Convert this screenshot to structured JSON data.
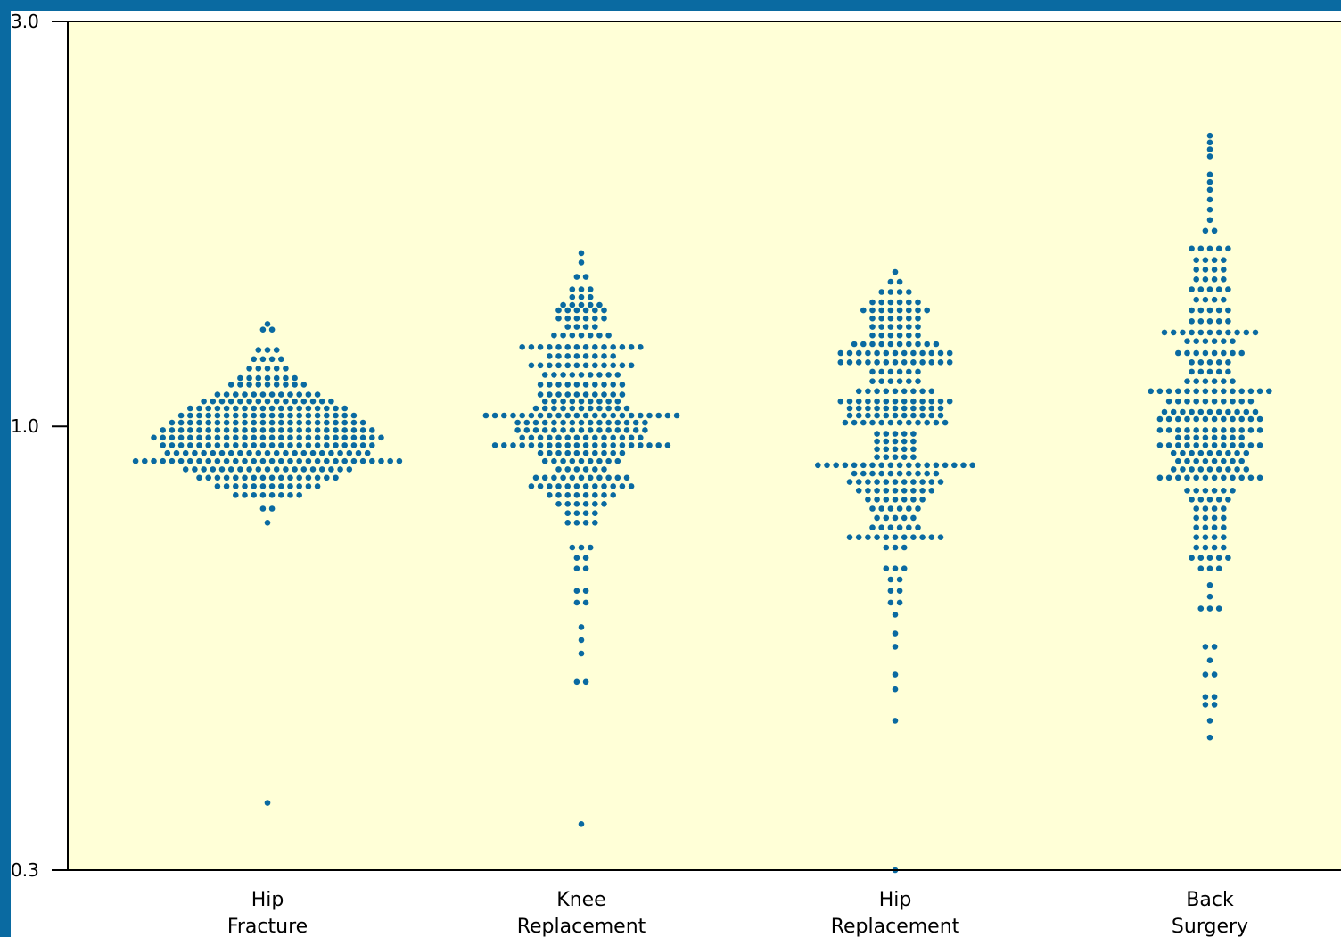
{
  "chart_data": {
    "type": "scatter",
    "style": "beeswarm",
    "y_scale": "log",
    "ylim": [
      0.3,
      3.0
    ],
    "y_ticks": [
      "0.3",
      "1.0",
      "3.0"
    ],
    "colors": {
      "plot_bg": "#ffffd7",
      "point": "#0a6aa1",
      "frame": "#0a6aa1"
    },
    "categories": [
      {
        "line1": "Hip",
        "line2": "Fracture"
      },
      {
        "line1": "Knee",
        "line2": "Replacement"
      },
      {
        "line1": "Hip",
        "line2": "Replacement"
      },
      {
        "line1": "Back",
        "line2": "Surgery"
      }
    ],
    "series": [
      {
        "rows": [
          [
            1.32,
            1
          ],
          [
            1.3,
            2
          ],
          [
            1.23,
            3
          ],
          [
            1.2,
            4
          ],
          [
            1.17,
            5
          ],
          [
            1.14,
            7
          ],
          [
            1.12,
            9
          ],
          [
            1.09,
            12
          ],
          [
            1.07,
            15
          ],
          [
            1.05,
            18
          ],
          [
            1.03,
            20
          ],
          [
            1.01,
            22
          ],
          [
            0.99,
            24
          ],
          [
            0.97,
            26
          ],
          [
            0.95,
            24
          ],
          [
            0.93,
            23
          ],
          [
            0.91,
            30
          ],
          [
            0.89,
            19
          ],
          [
            0.87,
            16
          ],
          [
            0.85,
            12
          ],
          [
            0.83,
            8
          ],
          [
            0.8,
            2
          ],
          [
            0.77,
            1
          ],
          [
            0.36,
            1
          ]
        ]
      },
      {
        "rows": [
          [
            1.6,
            1
          ],
          [
            1.56,
            1
          ],
          [
            1.5,
            2
          ],
          [
            1.45,
            3
          ],
          [
            1.42,
            3
          ],
          [
            1.39,
            5
          ],
          [
            1.37,
            6
          ],
          [
            1.34,
            6
          ],
          [
            1.31,
            4
          ],
          [
            1.28,
            7
          ],
          [
            1.24,
            14
          ],
          [
            1.21,
            8
          ],
          [
            1.18,
            12
          ],
          [
            1.15,
            9
          ],
          [
            1.12,
            10
          ],
          [
            1.09,
            10
          ],
          [
            1.07,
            9
          ],
          [
            1.05,
            11
          ],
          [
            1.03,
            22
          ],
          [
            1.01,
            15
          ],
          [
            0.99,
            15
          ],
          [
            0.97,
            14
          ],
          [
            0.95,
            20
          ],
          [
            0.93,
            10
          ],
          [
            0.91,
            9
          ],
          [
            0.89,
            6
          ],
          [
            0.87,
            11
          ],
          [
            0.85,
            12
          ],
          [
            0.83,
            8
          ],
          [
            0.81,
            6
          ],
          [
            0.79,
            4
          ],
          [
            0.77,
            4
          ],
          [
            0.72,
            3
          ],
          [
            0.7,
            2
          ],
          [
            0.68,
            2
          ],
          [
            0.64,
            2
          ],
          [
            0.62,
            2
          ],
          [
            0.58,
            1
          ],
          [
            0.56,
            1
          ],
          [
            0.54,
            1
          ],
          [
            0.5,
            2
          ],
          [
            0.34,
            1
          ]
        ]
      },
      {
        "rows": [
          [
            1.52,
            1
          ],
          [
            1.48,
            2
          ],
          [
            1.44,
            4
          ],
          [
            1.4,
            6
          ],
          [
            1.37,
            8
          ],
          [
            1.34,
            6
          ],
          [
            1.31,
            6
          ],
          [
            1.28,
            6
          ],
          [
            1.25,
            10
          ],
          [
            1.22,
            13
          ],
          [
            1.19,
            13
          ],
          [
            1.16,
            6
          ],
          [
            1.13,
            6
          ],
          [
            1.1,
            9
          ],
          [
            1.07,
            13
          ],
          [
            1.05,
            11
          ],
          [
            1.03,
            11
          ],
          [
            1.01,
            12
          ],
          [
            0.98,
            5
          ],
          [
            0.96,
            5
          ],
          [
            0.94,
            5
          ],
          [
            0.92,
            5
          ],
          [
            0.9,
            18
          ],
          [
            0.88,
            10
          ],
          [
            0.86,
            11
          ],
          [
            0.84,
            9
          ],
          [
            0.82,
            7
          ],
          [
            0.8,
            6
          ],
          [
            0.78,
            5
          ],
          [
            0.76,
            6
          ],
          [
            0.74,
            11
          ],
          [
            0.72,
            3
          ],
          [
            0.68,
            3
          ],
          [
            0.66,
            2
          ],
          [
            0.64,
            2
          ],
          [
            0.62,
            2
          ],
          [
            0.6,
            1
          ],
          [
            0.57,
            1
          ],
          [
            0.55,
            1
          ],
          [
            0.51,
            1
          ],
          [
            0.49,
            1
          ],
          [
            0.45,
            1
          ],
          [
            0.3,
            1
          ]
        ]
      },
      {
        "rows": [
          [
            2.2,
            1
          ],
          [
            2.16,
            1
          ],
          [
            2.12,
            1
          ],
          [
            2.08,
            1
          ],
          [
            1.98,
            1
          ],
          [
            1.94,
            1
          ],
          [
            1.9,
            1
          ],
          [
            1.85,
            1
          ],
          [
            1.8,
            1
          ],
          [
            1.75,
            1
          ],
          [
            1.7,
            2
          ],
          [
            1.62,
            5
          ],
          [
            1.57,
            4
          ],
          [
            1.53,
            4
          ],
          [
            1.49,
            4
          ],
          [
            1.45,
            5
          ],
          [
            1.41,
            4
          ],
          [
            1.37,
            5
          ],
          [
            1.33,
            5
          ],
          [
            1.29,
            11
          ],
          [
            1.26,
            6
          ],
          [
            1.22,
            8
          ],
          [
            1.19,
            5
          ],
          [
            1.16,
            5
          ],
          [
            1.13,
            6
          ],
          [
            1.1,
            14
          ],
          [
            1.07,
            10
          ],
          [
            1.04,
            11
          ],
          [
            1.02,
            12
          ],
          [
            0.99,
            12
          ],
          [
            0.97,
            8
          ],
          [
            0.95,
            12
          ],
          [
            0.93,
            9
          ],
          [
            0.91,
            8
          ],
          [
            0.89,
            9
          ],
          [
            0.87,
            12
          ],
          [
            0.84,
            6
          ],
          [
            0.82,
            5
          ],
          [
            0.8,
            4
          ],
          [
            0.78,
            4
          ],
          [
            0.76,
            4
          ],
          [
            0.74,
            4
          ],
          [
            0.72,
            4
          ],
          [
            0.7,
            5
          ],
          [
            0.68,
            3
          ],
          [
            0.65,
            1
          ],
          [
            0.63,
            1
          ],
          [
            0.61,
            3
          ],
          [
            0.55,
            2
          ],
          [
            0.53,
            1
          ],
          [
            0.51,
            2
          ],
          [
            0.48,
            2
          ],
          [
            0.47,
            2
          ],
          [
            0.45,
            1
          ],
          [
            0.43,
            1
          ]
        ]
      }
    ]
  }
}
